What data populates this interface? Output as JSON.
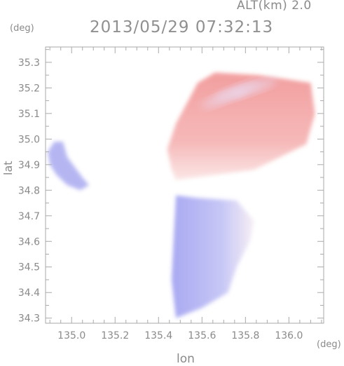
{
  "header": {
    "altitude": "ALT(km) 2.0",
    "timestamp": "2013/05/29 07:32:13"
  },
  "chart_data": {
    "type": "heatmap",
    "title": "2013/05/29 07:32:13",
    "subtitle": "ALT(km) 2.0",
    "xlabel": "lon",
    "ylabel": "lat",
    "x_unit": "(deg)",
    "y_unit": "(deg)",
    "xlim": [
      134.88,
      136.16
    ],
    "ylim": [
      34.28,
      35.36
    ],
    "x_ticks": [
      135.0,
      135.2,
      135.4,
      135.6,
      135.8,
      136.0
    ],
    "x_tick_labels": [
      "135.0",
      "135.2",
      "135.4",
      "135.6",
      "135.8",
      "136.0"
    ],
    "y_ticks": [
      34.3,
      34.4,
      34.5,
      34.6,
      34.7,
      34.8,
      34.9,
      35.0,
      35.1,
      35.2,
      35.3
    ],
    "y_tick_labels": [
      "34.3",
      "34.4",
      "34.5",
      "34.6",
      "34.7",
      "34.8",
      "34.9",
      "35.0",
      "35.1",
      "35.2",
      "35.3"
    ],
    "colormap": {
      "negative": "#9a9af0",
      "zero": "#ffffff",
      "positive": "#f08a8a"
    },
    "regions": [
      {
        "name": "northern echo region",
        "sign": "positive",
        "lon": [
          135.48,
          135.84,
          136.08,
          136.12,
          136.1,
          135.86,
          135.66,
          135.58,
          135.48,
          135.44,
          135.46
        ],
        "lat": [
          34.84,
          34.88,
          34.98,
          35.1,
          35.22,
          35.25,
          35.26,
          35.22,
          35.06,
          34.96,
          34.88
        ]
      },
      {
        "name": "southern echo region",
        "sign": "negative",
        "lon": [
          135.48,
          135.58,
          135.76,
          135.84,
          135.82,
          135.76,
          135.72,
          135.6,
          135.54,
          135.48,
          135.46,
          135.47
        ],
        "lat": [
          34.78,
          34.77,
          34.76,
          34.68,
          34.6,
          34.5,
          34.4,
          34.34,
          34.32,
          34.3,
          34.45,
          34.62
        ]
      },
      {
        "name": "western echo region",
        "sign": "negative",
        "lon": [
          134.92,
          134.96,
          134.98,
          135.05,
          135.08,
          135.04,
          134.98,
          134.93,
          134.9,
          134.89
        ],
        "lat": [
          34.99,
          34.99,
          34.93,
          34.85,
          34.82,
          34.8,
          34.82,
          34.86,
          34.9,
          34.95
        ]
      }
    ]
  }
}
